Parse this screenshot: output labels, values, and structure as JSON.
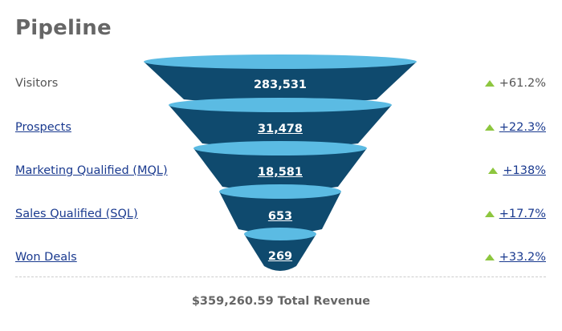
{
  "title": "Pipeline",
  "stages": [
    {
      "label": "Visitors",
      "count": "283,531",
      "change": "+61.2%",
      "link": false
    },
    {
      "label": "Prospects",
      "count": "31,478",
      "change": "+22.3%",
      "link": true
    },
    {
      "label": "Marketing Qualified (MQL)",
      "count": "18,581",
      "change": "+138%",
      "link": true
    },
    {
      "label": "Sales Qualified (SQL)",
      "count": "653",
      "change": "+17.7%",
      "link": true
    },
    {
      "label": "Won Deals",
      "count": "269",
      "change": "+33.2%",
      "link": true
    }
  ],
  "total": "$359,260.59 Total Revenue",
  "colors": {
    "funnel_dark": "#0f4a6e",
    "funnel_light": "#5bbbe3",
    "trend_up": "#8dc63f",
    "link": "#1a3a8f"
  },
  "icons": {
    "trend": "triangle-up-icon"
  }
}
